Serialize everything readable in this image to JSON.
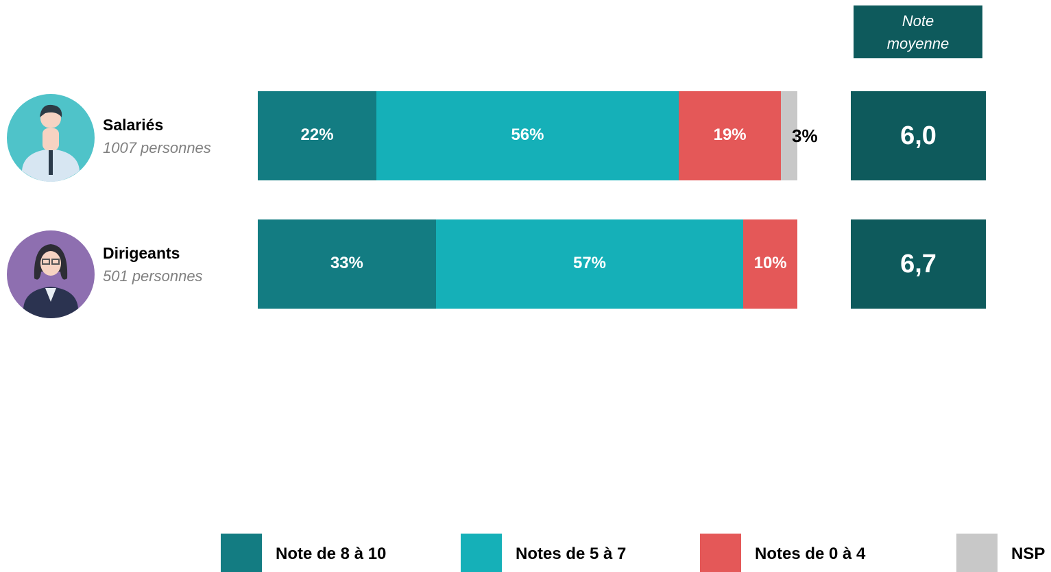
{
  "chart_data": {
    "type": "stacked-bar",
    "orientation": "horizontal",
    "categories": [
      "Salariés",
      "Dirigeants"
    ],
    "category_notes": [
      "1007 personnes",
      "501 personnes"
    ],
    "xlim": [
      0,
      100
    ],
    "series": [
      {
        "name": "Note de 8 à 10",
        "color": "#137c82",
        "values": [
          22,
          33
        ],
        "value_labels": [
          "22%",
          "33%"
        ]
      },
      {
        "name": "Notes de 5 à 7",
        "color": "#15b0b8",
        "values": [
          56,
          57
        ],
        "value_labels": [
          "56%",
          "57%"
        ]
      },
      {
        "name": "Notes de 0 à 4",
        "color": "#e45858",
        "values": [
          19,
          10
        ],
        "value_labels": [
          "19%",
          "10%"
        ]
      },
      {
        "name": "NSP",
        "color": "#c8c8c8",
        "values": [
          3,
          null
        ],
        "value_labels": [
          "3%",
          null
        ]
      }
    ],
    "mean_score": {
      "title": "Note moyenne",
      "values": [
        6.0,
        6.7
      ],
      "value_labels": [
        "6,0",
        "6,7"
      ]
    }
  }
}
